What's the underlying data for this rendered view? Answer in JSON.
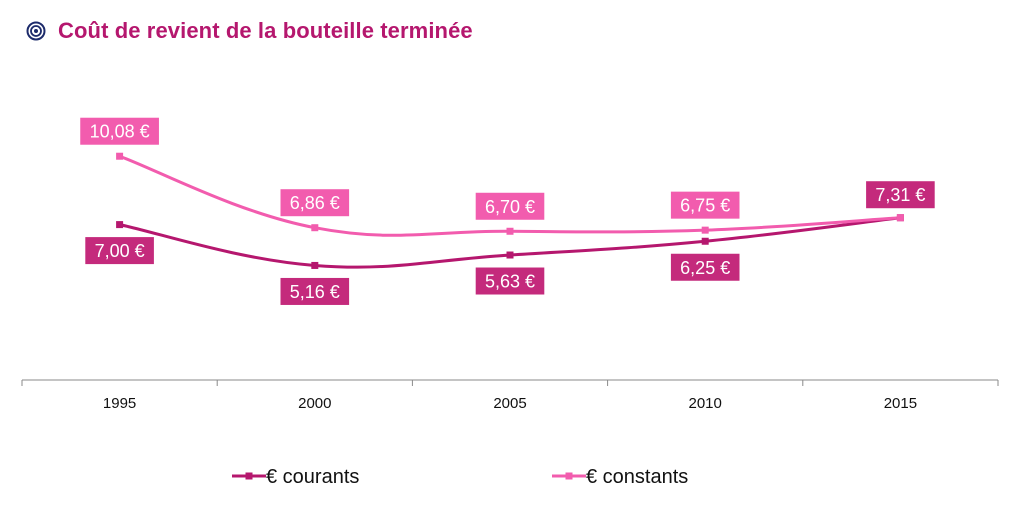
{
  "header": {
    "title": "Coût de revient de la bouteille terminée",
    "icon": "target-icon",
    "title_color": "#b5176e",
    "icon_color": "#1d2b6b"
  },
  "chart_data": {
    "type": "line",
    "title": "Coût de revient de la bouteille terminée",
    "categories": [
      "1995",
      "2000",
      "2005",
      "2010",
      "2015"
    ],
    "series": [
      {
        "name": "€ courants",
        "color": "#b5176e",
        "label_color": "#c42a7c",
        "values": [
          7.0,
          5.16,
          5.63,
          6.25,
          7.31
        ],
        "labels": [
          "7,00 €",
          "5,16 €",
          "5,63 €",
          "6,25 €",
          "7,31 €"
        ]
      },
      {
        "name": "€ constants",
        "color": "#f25cae",
        "label_color": "#f25cae",
        "values": [
          10.08,
          6.86,
          6.7,
          6.75,
          7.31
        ],
        "labels": [
          "10,08 €",
          "6,86 €",
          "6,70 €",
          "6,75 €",
          ""
        ]
      }
    ],
    "ylim": [
      0,
      14
    ],
    "grid": false,
    "y_axis_visible": false,
    "legend_position": "bottom"
  }
}
